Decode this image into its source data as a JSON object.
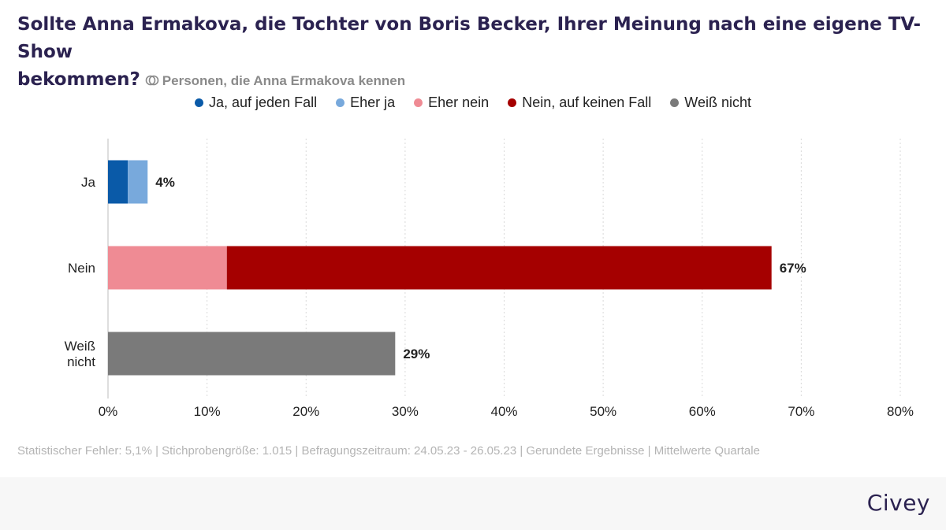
{
  "header": {
    "title": "Sollte Anna Ermakova, die Tochter von Boris Becker, Ihrer Meinung nach eine eigene TV-Show",
    "title_line2": "bekommen?",
    "subtitle": "Personen, die Anna Ermakova kennen"
  },
  "chart_data": {
    "type": "bar",
    "orientation": "horizontal",
    "stacked": true,
    "categories": [
      "Ja",
      "Nein",
      "Weiß nicht"
    ],
    "series": [
      {
        "name": "Ja, auf jeden Fall",
        "color": "#0a5aa8",
        "values": [
          2,
          0,
          0
        ]
      },
      {
        "name": "Eher ja",
        "color": "#78a9dc",
        "values": [
          2,
          0,
          0
        ]
      },
      {
        "name": "Eher nein",
        "color": "#ef8b94",
        "values": [
          0,
          12,
          0
        ]
      },
      {
        "name": "Nein, auf keinen Fall",
        "color": "#a50000",
        "values": [
          0,
          55,
          0
        ]
      },
      {
        "name": "Weiß nicht",
        "color": "#7a7a7a",
        "values": [
          0,
          0,
          29
        ]
      }
    ],
    "totals": [
      "4%",
      "67%",
      "29%"
    ],
    "xlim": [
      0,
      80
    ],
    "xticks": [
      "0%",
      "10%",
      "20%",
      "30%",
      "40%",
      "50%",
      "60%",
      "70%",
      "80%"
    ],
    "grid": true,
    "legend": "top-center"
  },
  "footer": {
    "note": "Statistischer Fehler: 5,1% | Stichprobengröße: 1.015 | Befragungszeitraum: 24.05.23 - 26.05.23 | Gerundete Ergebnisse | Mittelwerte Quartale",
    "brand": "Civey"
  }
}
